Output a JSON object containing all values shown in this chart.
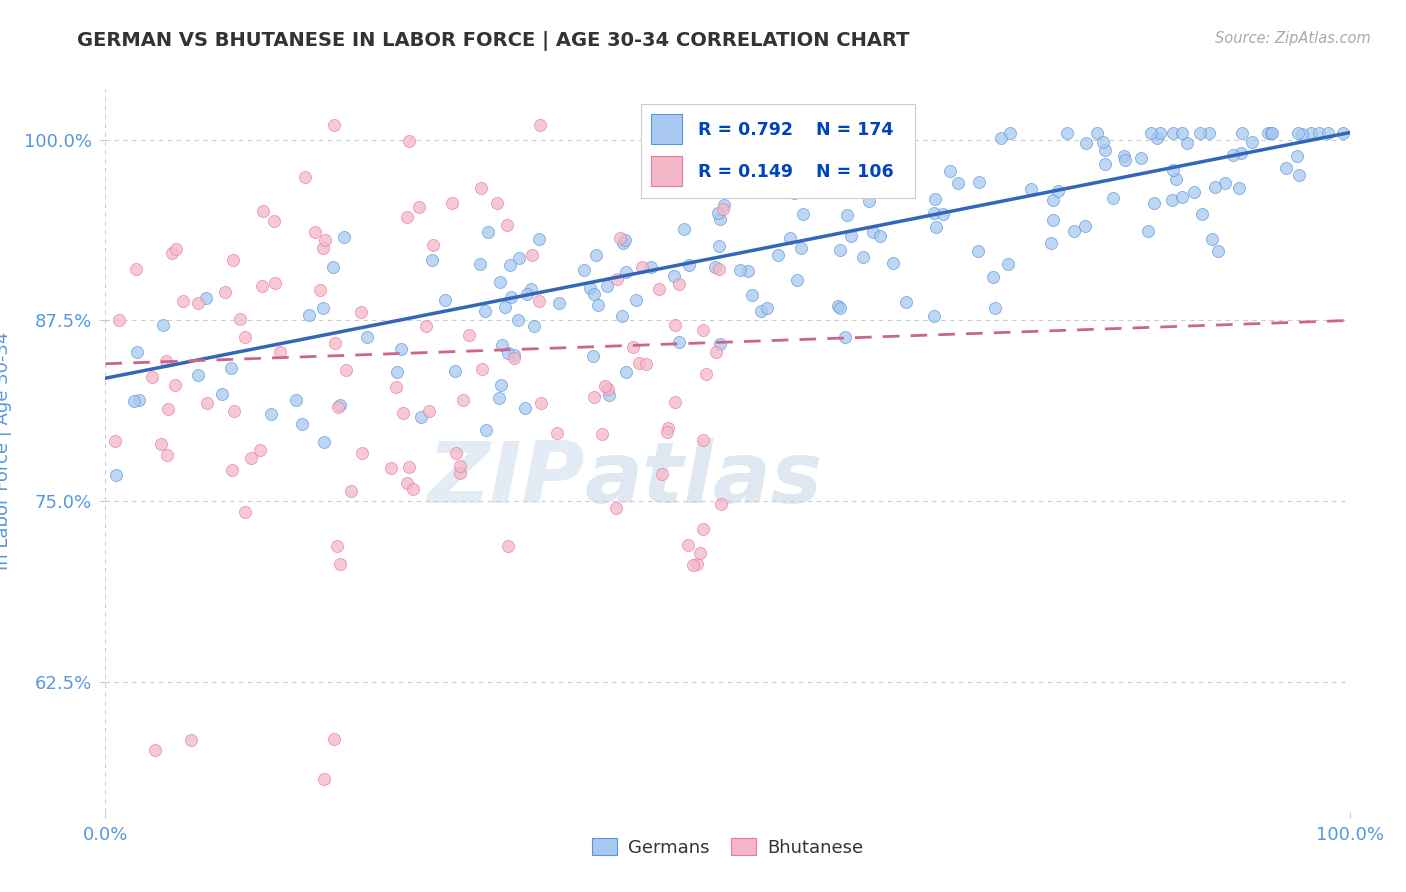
{
  "title": "GERMAN VS BHUTANESE IN LABOR FORCE | AGE 30-34 CORRELATION CHART",
  "source_text": "Source: ZipAtlas.com",
  "ylabel": "In Labor Force | Age 30-34",
  "xlim": [
    0.0,
    1.0
  ],
  "ylim": [
    0.535,
    1.035
  ],
  "yticks": [
    0.625,
    0.75,
    0.875,
    1.0
  ],
  "ytick_labels": [
    "62.5%",
    "75.0%",
    "87.5%",
    "100.0%"
  ],
  "xtick_labels": [
    "0.0%",
    "100.0%"
  ],
  "xticks": [
    0.0,
    1.0
  ],
  "legend_labels": [
    "Germans",
    "Bhutanese"
  ],
  "legend_R": [
    "R = 0.792",
    "R = 0.149"
  ],
  "legend_N": [
    "N = 174",
    "N = 106"
  ],
  "german_color": "#a8c8f0",
  "bhutanese_color": "#f5b8c8",
  "german_edge_color": "#5599dd",
  "bhutanese_edge_color": "#e878a0",
  "german_line_color": "#3366bb",
  "bhutanese_line_color": "#cc6688",
  "watermark_zip": "ZIP",
  "watermark_atlas": "atlas",
  "background_color": "#ffffff",
  "grid_color": "#cccccc",
  "title_color": "#333333",
  "axis_tick_color": "#5599dd",
  "legend_text_color": "#0044bb",
  "legend_R_color": "#0044bb",
  "source_color": "#aaaaaa",
  "seed": 7,
  "n_german": 174,
  "n_bhutanese": 106,
  "german_line_x0": 0.0,
  "german_line_y0": 0.835,
  "german_line_x1": 1.0,
  "german_line_y1": 1.005,
  "bhutanese_line_x0": 0.0,
  "bhutanese_line_y0": 0.845,
  "bhutanese_line_x1": 1.0,
  "bhutanese_line_y1": 0.875
}
